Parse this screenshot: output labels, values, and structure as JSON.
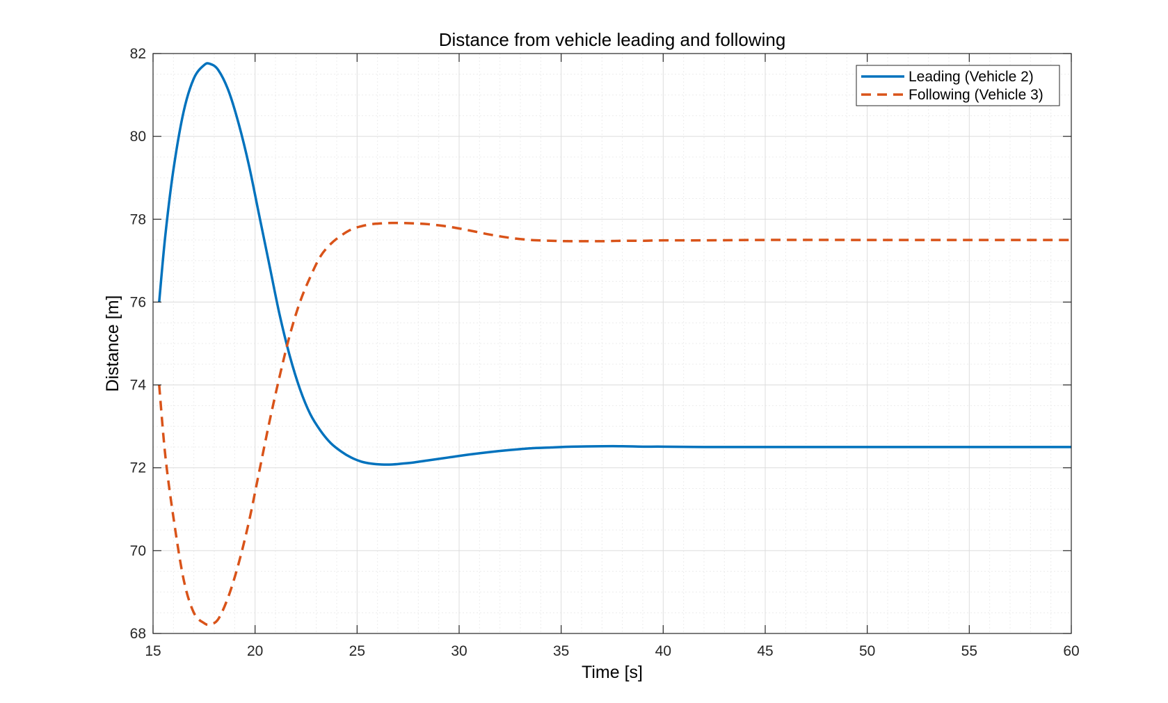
{
  "chart_data": {
    "type": "line",
    "title": "Distance from vehicle leading and following",
    "xlabel": "Time [s]",
    "ylabel": "Distance [m]",
    "xlim": [
      15,
      60
    ],
    "ylim": [
      68,
      82
    ],
    "xticks": [
      15,
      20,
      25,
      30,
      35,
      40,
      45,
      50,
      55,
      60
    ],
    "yticks": [
      68,
      70,
      72,
      74,
      76,
      78,
      80,
      82
    ],
    "xtick_labels": [
      "15",
      "20",
      "25",
      "30",
      "35",
      "40",
      "45",
      "50",
      "55",
      "60"
    ],
    "ytick_labels": [
      "68",
      "70",
      "72",
      "74",
      "76",
      "78",
      "80",
      "82"
    ],
    "grid": true,
    "minor_grid": true,
    "legend_position": "top-right",
    "series": [
      {
        "name": "Leading (Vehicle 2)",
        "color": "#0072BD",
        "style": "solid",
        "x": [
          15.3,
          15.6,
          16.0,
          16.5,
          17.0,
          17.5,
          17.8,
          18.2,
          18.7,
          19.2,
          19.7,
          20.2,
          20.7,
          21.2,
          21.7,
          22.2,
          22.7,
          23.2,
          23.7,
          24.2,
          24.7,
          25.2,
          25.7,
          26.2,
          26.7,
          27.2,
          27.8,
          28.5,
          29.5,
          30.5,
          31.5,
          32.5,
          33.5,
          34.5,
          35.5,
          37.0,
          38.0,
          39.0,
          40.0,
          42.0,
          45.0,
          50.0,
          55.0,
          60.0
        ],
        "y": [
          76.0,
          77.6,
          79.2,
          80.6,
          81.4,
          81.72,
          81.75,
          81.6,
          81.1,
          80.3,
          79.3,
          78.1,
          76.9,
          75.7,
          74.7,
          73.9,
          73.3,
          72.9,
          72.6,
          72.4,
          72.25,
          72.15,
          72.1,
          72.08,
          72.08,
          72.1,
          72.13,
          72.18,
          72.25,
          72.32,
          72.38,
          72.43,
          72.47,
          72.49,
          72.51,
          72.52,
          72.52,
          72.51,
          72.51,
          72.5,
          72.5,
          72.5,
          72.5,
          72.5
        ]
      },
      {
        "name": "Following (Vehicle 3)",
        "color": "#D95319",
        "style": "dashed",
        "x": [
          15.3,
          15.6,
          16.0,
          16.5,
          17.0,
          17.5,
          17.8,
          18.2,
          18.7,
          19.2,
          19.7,
          20.2,
          20.7,
          21.2,
          21.7,
          22.2,
          22.7,
          23.2,
          23.7,
          24.2,
          24.7,
          25.2,
          25.7,
          26.2,
          26.7,
          27.2,
          27.8,
          28.5,
          29.5,
          30.5,
          31.5,
          32.5,
          33.5,
          34.5,
          35.5,
          37.0,
          38.0,
          39.0,
          40.0,
          42.0,
          45.0,
          50.0,
          55.0,
          60.0
        ],
        "y": [
          74.0,
          72.3,
          70.8,
          69.3,
          68.5,
          68.25,
          68.22,
          68.35,
          68.9,
          69.7,
          70.7,
          71.9,
          73.1,
          74.2,
          75.2,
          76.0,
          76.6,
          77.1,
          77.4,
          77.6,
          77.75,
          77.83,
          77.88,
          77.9,
          77.91,
          77.91,
          77.9,
          77.88,
          77.82,
          77.73,
          77.63,
          77.55,
          77.5,
          77.48,
          77.47,
          77.47,
          77.48,
          77.48,
          77.49,
          77.49,
          77.5,
          77.5,
          77.5,
          77.5
        ]
      }
    ]
  }
}
